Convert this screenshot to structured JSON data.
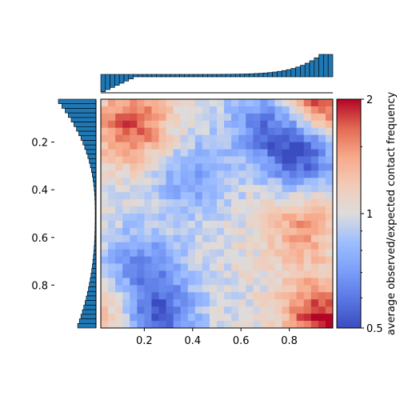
{
  "chart_data": {
    "type": "heatmap",
    "title": "",
    "colorbar": {
      "label": "average observed/expected contact frequency",
      "scale": "log",
      "range": [
        0.5,
        2
      ],
      "ticks": [
        "0.5",
        "1",
        "2"
      ],
      "colormap": "coolwarm"
    },
    "x": {
      "range": [
        0.02,
        0.98
      ],
      "ticks": [
        "0.2",
        "0.4",
        "0.6",
        "0.8"
      ],
      "label": ""
    },
    "y": {
      "range": [
        0.02,
        0.98
      ],
      "ticks": [
        "0.2",
        "0.4",
        "0.6",
        "0.8"
      ],
      "label": "",
      "inverted": true
    },
    "grid_size": [
      32,
      32
    ],
    "features": [
      {
        "x": 0.93,
        "y": 0.03,
        "value": 1.95
      },
      {
        "x": 0.15,
        "y": 0.13,
        "value": 1.75
      },
      {
        "x": 0.85,
        "y": 0.25,
        "value": 0.52
      },
      {
        "x": 0.7,
        "y": 0.12,
        "value": 0.65
      },
      {
        "x": 0.25,
        "y": 0.93,
        "value": 0.52
      },
      {
        "x": 0.18,
        "y": 0.72,
        "value": 0.65
      },
      {
        "x": 0.93,
        "y": 0.93,
        "value": 1.95
      },
      {
        "x": 0.85,
        "y": 0.55,
        "value": 1.45
      },
      {
        "x": 0.08,
        "y": 0.9,
        "value": 1.4
      },
      {
        "x": 0.4,
        "y": 0.35,
        "value": 0.72
      }
    ],
    "top_marginal": {
      "bins": 50,
      "trend": "decreasing near x=0.05, flat through the middle, rising steeply toward x=0.98"
    },
    "left_marginal": {
      "bins": 50,
      "trend": "large near y=0.05 and y=0.98, minimal near y=0.5"
    },
    "colors": {
      "bar_fill": "#1f77b4",
      "bar_edge": "#000000"
    }
  }
}
